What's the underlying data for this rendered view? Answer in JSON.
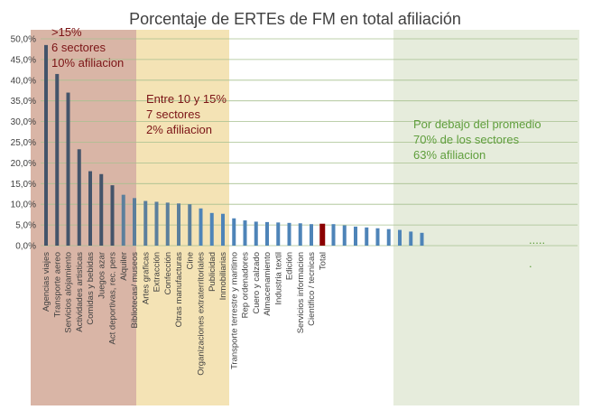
{
  "chart_data": {
    "type": "bar",
    "title": "Porcentaje de ERTEs de FM en total afiliación",
    "xlabel": "",
    "ylabel": "",
    "ylim": [
      0,
      50
    ],
    "y_ticks": [
      "0,0%",
      "5,0%",
      "10,0%",
      "15,0%",
      "20,0%",
      "25,0%",
      "30,0%",
      "35,0%",
      "40,0%",
      "45,0%",
      "50,0%"
    ],
    "grid": true,
    "categories": [
      "Agencias viajes",
      "Transporte aereo",
      "Servicios alojamiento",
      "Actividades artisticas",
      "Comidas y bebidas",
      "Juegos azar",
      "Act deportivas, rec. pers",
      "Alquiler",
      "Bibliotecas/ museos",
      "Artes graficas",
      "Extracción",
      "Confección",
      "Otras manufacturas",
      "Cine",
      "Organizaciones extraterritoriales",
      "Publicidad",
      "Inmobiliarias",
      "Transporte terrestre y maritimo",
      "Rep ordenadores",
      "Cuero y calzado",
      "Almacenamiento",
      "Industria textil",
      "Edición",
      "Servicios informacion",
      "Cientifico / tecnicas",
      "Total",
      "",
      "",
      "",
      "",
      "",
      "",
      "",
      "",
      ""
    ],
    "values": [
      48.5,
      41.5,
      37,
      23.3,
      18,
      17.3,
      14.6,
      12.3,
      11.5,
      10.8,
      10.6,
      10.4,
      10.2,
      10,
      9,
      7.9,
      7.7,
      6.6,
      6.1,
      5.8,
      5.7,
      5.6,
      5.5,
      5.4,
      5.2,
      5.3,
      5.2,
      4.9,
      4.6,
      4.4,
      4.2,
      4.0,
      3.8,
      3.4,
      3.1
    ],
    "colors": {
      "bar_group1": "#44546a",
      "bar_group2": "#5b7f9c",
      "bar_default": "#4e84b8",
      "bar_total": "#8b0000",
      "band1": "#d9b5a6",
      "band2": "#f4e3b5",
      "band3": "#e6ecdc",
      "ann1": "#7b1416",
      "ann2": "#7b1416",
      "ann3": "#5f9e3c",
      "grid": "#a7c08f"
    },
    "annotations": {
      "group1": [
        ">15%",
        "6 sectores",
        "10% afiliacion"
      ],
      "group2": [
        "Entre 10 y 15%",
        "7 sectores",
        "2% afiliacion"
      ],
      "group3": [
        "Por debajo del promedio",
        "70% de los sectores",
        "63% afiliacion"
      ],
      "ellipsis": ".....",
      "dot": "."
    }
  }
}
